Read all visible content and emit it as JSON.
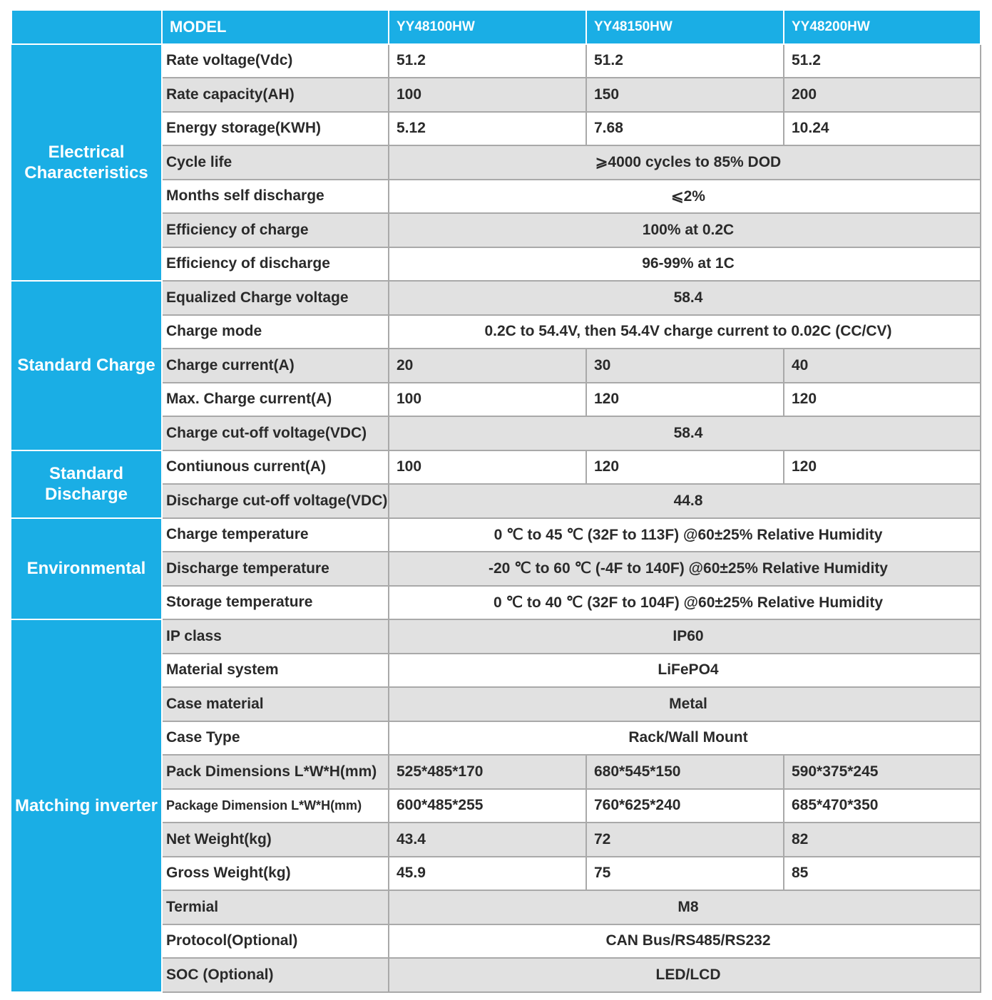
{
  "header": {
    "model_label": "MODEL",
    "models": [
      "YY48100HW",
      "YY48150HW",
      "YY48200HW"
    ]
  },
  "colors": {
    "accent": "#1aaee5",
    "row_alt": "#e1e1e1",
    "border": "#a9a9a9"
  },
  "groups": [
    {
      "label": "Electrical Characteristics",
      "rows": [
        {
          "label": "Rate voltage(Vdc)",
          "values": [
            "51.2",
            "51.2",
            "51.2"
          ]
        },
        {
          "label": "Rate capacity(AH)",
          "values": [
            "100",
            "150",
            "200"
          ]
        },
        {
          "label": "Energy storage(KWH)",
          "values": [
            "5.12",
            "7.68",
            "10.24"
          ]
        },
        {
          "label": "Cycle life",
          "values": [
            "⩾4000 cycles to 85% DOD"
          ]
        },
        {
          "label": "Months self discharge",
          "values": [
            "⩽2%"
          ]
        },
        {
          "label": "Efficiency of charge",
          "values": [
            "100% at 0.2C"
          ]
        },
        {
          "label": "Efficiency of discharge",
          "values": [
            "96-99% at 1C"
          ]
        }
      ]
    },
    {
      "label": "Standard Charge",
      "rows": [
        {
          "label": "Equalized Charge voltage",
          "values": [
            "58.4"
          ]
        },
        {
          "label": "Charge mode",
          "values": [
            "0.2C to 54.4V, then 54.4V charge current to 0.02C (CC/CV)"
          ]
        },
        {
          "label": "Charge current(A)",
          "values": [
            "20",
            "30",
            "40"
          ]
        },
        {
          "label": "Max. Charge current(A)",
          "values": [
            "100",
            "120",
            "120"
          ]
        },
        {
          "label": "Charge cut-off voltage(VDC)",
          "values": [
            "58.4"
          ]
        }
      ]
    },
    {
      "label": "Standard Discharge",
      "rows": [
        {
          "label": "Contiunous current(A)",
          "values": [
            "100",
            "120",
            "120"
          ]
        },
        {
          "label": "Discharge cut-off voltage(VDC)",
          "values": [
            "44.8"
          ]
        }
      ]
    },
    {
      "label": "Environmental",
      "rows": [
        {
          "label": "Charge temperature",
          "values": [
            "0 ℃ to 45 ℃ (32F to 113F) @60±25% Relative Humidity"
          ]
        },
        {
          "label": "Discharge temperature",
          "values": [
            "-20 ℃ to 60 ℃ (-4F to 140F) @60±25% Relative Humidity"
          ]
        },
        {
          "label": "Storage temperature",
          "values": [
            "0 ℃ to 40 ℃ (32F to 104F) @60±25% Relative Humidity"
          ]
        }
      ]
    },
    {
      "label": "Matching inverter",
      "rows": [
        {
          "label": "IP class",
          "values": [
            "IP60"
          ]
        },
        {
          "label": "Material system",
          "values": [
            "LiFePO4"
          ]
        },
        {
          "label": "Case material",
          "values": [
            "Metal"
          ]
        },
        {
          "label": "Case Type",
          "values": [
            "Rack/Wall Mount"
          ]
        },
        {
          "label": "Pack Dimensions L*W*H(mm)",
          "values": [
            "525*485*170",
            "680*545*150",
            "590*375*245"
          ]
        },
        {
          "label": "Package Dimension L*W*H(mm)",
          "values": [
            "600*485*255",
            "760*625*240",
            "685*470*350"
          ]
        },
        {
          "label": "Net Weight(kg)",
          "values": [
            "43.4",
            "72",
            "82"
          ]
        },
        {
          "label": "Gross Weight(kg)",
          "values": [
            "45.9",
            "75",
            "85"
          ]
        },
        {
          "label": "Termial",
          "values": [
            "M8"
          ]
        },
        {
          "label": "Protocol(Optional)",
          "values": [
            "CAN Bus/RS485/RS232"
          ]
        },
        {
          "label": "SOC (Optional)",
          "values": [
            "LED/LCD"
          ]
        }
      ]
    }
  ]
}
